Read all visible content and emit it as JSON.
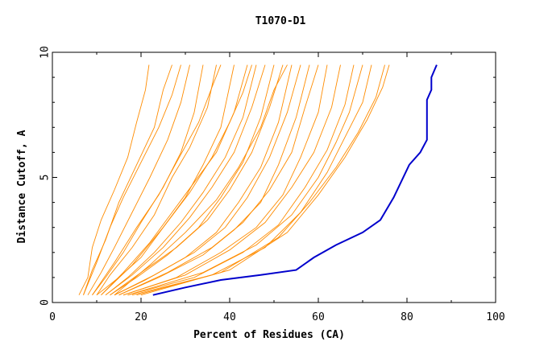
{
  "chart_data": {
    "type": "line",
    "title": "T1070-D1",
    "xlabel": "Percent of Residues (CA)",
    "ylabel": "Distance Cutoff, A",
    "xlim": [
      0,
      100
    ],
    "ylim": [
      0,
      10
    ],
    "x_ticks": [
      0,
      20,
      40,
      60,
      80,
      100
    ],
    "y_ticks": [
      0,
      5,
      10
    ],
    "grid": false,
    "legend": "none",
    "colors": {
      "highlight": "#0000cc",
      "others": "#ff8c00"
    },
    "highlight_series": {
      "points": [
        [
          22.7,
          0.3
        ],
        [
          30,
          0.6
        ],
        [
          38,
          0.9
        ],
        [
          47,
          1.1
        ],
        [
          55,
          1.3
        ],
        [
          59,
          1.8
        ],
        [
          64,
          2.3
        ],
        [
          70,
          2.8
        ],
        [
          74,
          3.3
        ],
        [
          77,
          4.2
        ],
        [
          80.5,
          5.5
        ],
        [
          83,
          6.0
        ],
        [
          84.5,
          6.5
        ],
        [
          84.5,
          8.1
        ],
        [
          85.5,
          8.5
        ],
        [
          85.5,
          9.0
        ],
        [
          86.7,
          9.5
        ]
      ]
    },
    "other_series": [
      {
        "points": [
          [
            6,
            0.3
          ],
          [
            8,
            1.0
          ],
          [
            9,
            2.2
          ],
          [
            11,
            3.3
          ],
          [
            14,
            4.5
          ],
          [
            17,
            5.8
          ],
          [
            19,
            7.2
          ],
          [
            21,
            8.5
          ],
          [
            21.8,
            9.5
          ]
        ]
      },
      {
        "points": [
          [
            7,
            0.3
          ],
          [
            9,
            1.3
          ],
          [
            12,
            2.5
          ],
          [
            15,
            4.0
          ],
          [
            19,
            5.5
          ],
          [
            23,
            7.0
          ],
          [
            25,
            8.5
          ],
          [
            27,
            9.5
          ]
        ]
      },
      {
        "points": [
          [
            8,
            0.3
          ],
          [
            11,
            1.2
          ],
          [
            14,
            2.2
          ],
          [
            18,
            3.6
          ],
          [
            22,
            5.0
          ],
          [
            26,
            6.5
          ],
          [
            29,
            8.0
          ],
          [
            31,
            9.5
          ]
        ]
      },
      {
        "points": [
          [
            9,
            0.3
          ],
          [
            12,
            1.0
          ],
          [
            16,
            2.0
          ],
          [
            20,
            3.2
          ],
          [
            25,
            4.6
          ],
          [
            29,
            6.0
          ],
          [
            32,
            7.6
          ],
          [
            34,
            9.5
          ]
        ]
      },
      {
        "points": [
          [
            10,
            0.3
          ],
          [
            13,
            1.1
          ],
          [
            18,
            2.2
          ],
          [
            23,
            3.5
          ],
          [
            27,
            5.0
          ],
          [
            31,
            6.2
          ],
          [
            35,
            7.8
          ],
          [
            37,
            9.5
          ]
        ]
      },
      {
        "points": [
          [
            10,
            0.3
          ],
          [
            15,
            1.0
          ],
          [
            20,
            1.8
          ],
          [
            25,
            3.0
          ],
          [
            30,
            4.2
          ],
          [
            34,
            5.5
          ],
          [
            38,
            7.0
          ],
          [
            41,
            9.5
          ]
        ]
      },
      {
        "points": [
          [
            11,
            0.3
          ],
          [
            16,
            1.2
          ],
          [
            22,
            2.4
          ],
          [
            27,
            3.6
          ],
          [
            32,
            4.8
          ],
          [
            37,
            6.0
          ],
          [
            41,
            7.6
          ],
          [
            44,
            9.5
          ]
        ]
      },
      {
        "points": [
          [
            12,
            0.3
          ],
          [
            17,
            1.0
          ],
          [
            23,
            2.0
          ],
          [
            29,
            3.2
          ],
          [
            34,
            4.4
          ],
          [
            39,
            5.8
          ],
          [
            43,
            7.4
          ],
          [
            46,
            9.5
          ]
        ]
      },
      {
        "points": [
          [
            12,
            0.3
          ],
          [
            18,
            1.1
          ],
          [
            25,
            2.2
          ],
          [
            31,
            3.4
          ],
          [
            36,
            4.6
          ],
          [
            41,
            6.0
          ],
          [
            45,
            7.8
          ],
          [
            48,
            9.5
          ]
        ]
      },
      {
        "points": [
          [
            13,
            0.3
          ],
          [
            19,
            1.0
          ],
          [
            26,
            1.9
          ],
          [
            33,
            3.0
          ],
          [
            38,
            4.2
          ],
          [
            43,
            5.6
          ],
          [
            47,
            7.4
          ],
          [
            50,
            9.5
          ]
        ]
      },
      {
        "points": [
          [
            13,
            0.3
          ],
          [
            20,
            1.2
          ],
          [
            28,
            2.2
          ],
          [
            35,
            3.3
          ],
          [
            40,
            4.5
          ],
          [
            45,
            6.0
          ],
          [
            49,
            7.8
          ],
          [
            52,
            9.5
          ]
        ]
      },
      {
        "points": [
          [
            14,
            0.3
          ],
          [
            21,
            0.9
          ],
          [
            30,
            1.8
          ],
          [
            37,
            2.8
          ],
          [
            42,
            4.0
          ],
          [
            47,
            5.4
          ],
          [
            51,
            7.2
          ],
          [
            54,
            9.5
          ]
        ]
      },
      {
        "points": [
          [
            14,
            0.3
          ],
          [
            23,
            1.1
          ],
          [
            32,
            2.0
          ],
          [
            39,
            3.0
          ],
          [
            44,
            4.2
          ],
          [
            49,
            5.8
          ],
          [
            53,
            7.6
          ],
          [
            56,
            9.5
          ]
        ]
      },
      {
        "points": [
          [
            15,
            0.3
          ],
          [
            24,
            1.0
          ],
          [
            34,
            1.9
          ],
          [
            41,
            2.9
          ],
          [
            47,
            4.0
          ],
          [
            51,
            5.5
          ],
          [
            55,
            7.4
          ],
          [
            58,
            9.5
          ]
        ]
      },
      {
        "points": [
          [
            15,
            0.3
          ],
          [
            26,
            1.2
          ],
          [
            36,
            2.2
          ],
          [
            43,
            3.2
          ],
          [
            49,
            4.5
          ],
          [
            54,
            6.0
          ],
          [
            57,
            7.8
          ],
          [
            60,
            9.5
          ]
        ]
      },
      {
        "points": [
          [
            16,
            0.3
          ],
          [
            28,
            1.0
          ],
          [
            38,
            2.0
          ],
          [
            46,
            3.0
          ],
          [
            52,
            4.3
          ],
          [
            56,
            5.8
          ],
          [
            60,
            7.6
          ],
          [
            62,
            9.5
          ]
        ]
      },
      {
        "points": [
          [
            16,
            0.3
          ],
          [
            30,
            1.1
          ],
          [
            40,
            2.1
          ],
          [
            48,
            3.2
          ],
          [
            54,
            4.6
          ],
          [
            59,
            6.0
          ],
          [
            63,
            7.8
          ],
          [
            65,
            9.5
          ]
        ]
      },
      {
        "points": [
          [
            17,
            0.3
          ],
          [
            32,
            1.0
          ],
          [
            43,
            2.0
          ],
          [
            51,
            3.1
          ],
          [
            57,
            4.6
          ],
          [
            62,
            6.1
          ],
          [
            66,
            7.9
          ],
          [
            68,
            9.5
          ]
        ]
      },
      {
        "points": [
          [
            17,
            0.3
          ],
          [
            34,
            1.2
          ],
          [
            46,
            2.3
          ],
          [
            54,
            3.5
          ],
          [
            60,
            5.0
          ],
          [
            64,
            6.4
          ],
          [
            67,
            7.6
          ],
          [
            70,
            9.5
          ]
        ]
      },
      {
        "points": [
          [
            18,
            0.3
          ],
          [
            36,
            1.1
          ],
          [
            48,
            2.2
          ],
          [
            56,
            3.6
          ],
          [
            62,
            5.2
          ],
          [
            66,
            6.6
          ],
          [
            70,
            8.0
          ],
          [
            72,
            9.5
          ]
        ]
      },
      {
        "points": [
          [
            19,
            0.3
          ],
          [
            38,
            1.2
          ],
          [
            51,
            2.6
          ],
          [
            58,
            4.0
          ],
          [
            64,
            5.4
          ],
          [
            69,
            6.8
          ],
          [
            73,
            8.2
          ],
          [
            75,
            9.5
          ]
        ]
      },
      {
        "points": [
          [
            20,
            0.3
          ],
          [
            40,
            1.3
          ],
          [
            53,
            2.8
          ],
          [
            60,
            4.3
          ],
          [
            66,
            5.8
          ],
          [
            71,
            7.3
          ],
          [
            74.5,
            8.6
          ],
          [
            76,
            9.5
          ]
        ]
      },
      {
        "points": [
          [
            7,
            0.3
          ],
          [
            10,
            1.6
          ],
          [
            13,
            3.0
          ],
          [
            16,
            4.2
          ],
          [
            20,
            5.6
          ],
          [
            24,
            7.0
          ],
          [
            27,
            8.3
          ],
          [
            29,
            9.5
          ]
        ]
      },
      {
        "points": [
          [
            9,
            0.3
          ],
          [
            14,
            1.6
          ],
          [
            19,
            3.0
          ],
          [
            24,
            4.3
          ],
          [
            28,
            5.6
          ],
          [
            33,
            7.2
          ],
          [
            36,
            8.6
          ],
          [
            38,
            9.5
          ]
        ]
      },
      {
        "points": [
          [
            11,
            0.3
          ],
          [
            18,
            1.5
          ],
          [
            25,
            3.0
          ],
          [
            31,
            4.4
          ],
          [
            36,
            5.8
          ],
          [
            40,
            7.2
          ],
          [
            43,
            8.4
          ],
          [
            45,
            9.5
          ]
        ]
      },
      {
        "points": [
          [
            14,
            0.3
          ],
          [
            22,
            1.5
          ],
          [
            30,
            2.8
          ],
          [
            37,
            4.1
          ],
          [
            42,
            5.4
          ],
          [
            47,
            7.0
          ],
          [
            50,
            8.5
          ],
          [
            53,
            9.5
          ]
        ]
      }
    ]
  }
}
